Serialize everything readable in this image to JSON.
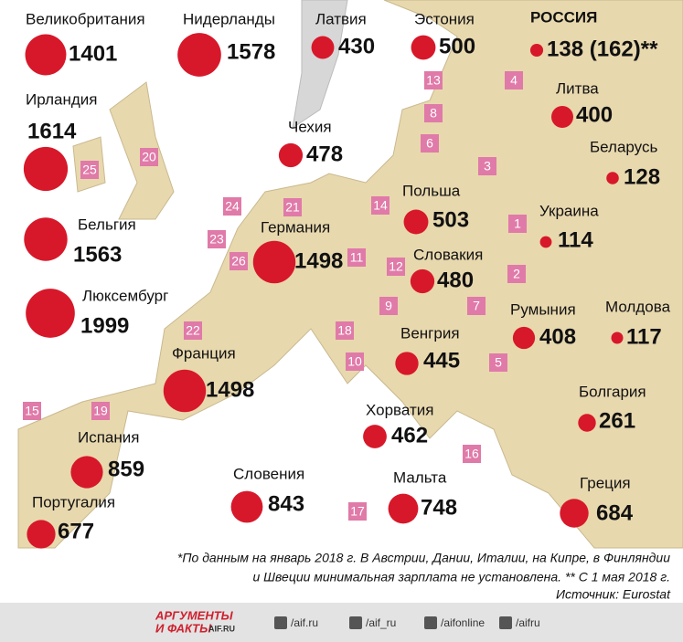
{
  "countries": [
    {
      "name": "Великобритания",
      "value": 1401,
      "rank": "20"
    },
    {
      "name": "Нидерланды",
      "value": 1578,
      "rank": "24"
    },
    {
      "name": "Латвия",
      "value": 430,
      "rank": "8"
    },
    {
      "name": "Эстония",
      "value": 500,
      "rank": "13"
    },
    {
      "name": "РОССИЯ",
      "value": 138,
      "value_label": "138 (162)**",
      "rank": "4"
    },
    {
      "name": "Ирландия",
      "value": 1614,
      "rank": "25"
    },
    {
      "name": "Литва",
      "value": 400,
      "rank": "6"
    },
    {
      "name": "Чехия",
      "value": 478,
      "rank": "11"
    },
    {
      "name": "Беларусь",
      "value": 128,
      "rank": "3"
    },
    {
      "name": "Польша",
      "value": 503,
      "rank": "14"
    },
    {
      "name": "Украина",
      "value": 114,
      "rank": "1"
    },
    {
      "name": "Германия",
      "value": 1498,
      "rank": "21"
    },
    {
      "name": "Бельгия",
      "value": 1563,
      "rank": "23"
    },
    {
      "name": "Словакия",
      "value": 480,
      "rank": "12"
    },
    {
      "name": "Люксембург",
      "value": 1999,
      "rank": "26"
    },
    {
      "name": "Молдова",
      "value": 117,
      "rank": "2"
    },
    {
      "name": "Румыния",
      "value": 408,
      "rank": "7"
    },
    {
      "name": "Венгрия",
      "value": 445,
      "rank": "9"
    },
    {
      "name": "Франция",
      "value": 1498,
      "rank": "22"
    },
    {
      "name": "Болгария",
      "value": 261,
      "rank": "5"
    },
    {
      "name": "Хорватия",
      "value": 462,
      "rank": "10"
    },
    {
      "name": "Испания",
      "value": 859,
      "rank": "19"
    },
    {
      "name": "Греция",
      "value": 684,
      "rank": "16"
    },
    {
      "name": "Словения",
      "value": 843,
      "rank": "18"
    },
    {
      "name": "Мальта",
      "value": 748,
      "rank": "17"
    },
    {
      "name": "Португалия",
      "value": 677,
      "rank": "15"
    }
  ],
  "footnote": [
    "*По данным на январь 2018 г. В Австрии, Дании, Италии, на Кипре, в Финляндии",
    "и Швеции минимальная зарплата не установлена. ** С 1 мая 2018 г."
  ],
  "source": "Источник: Eurostat",
  "footer": {
    "logo_top": "АРГУМЕНТЫ",
    "logo_bottom": "И ФАКТЫ",
    "logo_site": "AIF.RU",
    "social": [
      "/aif.ru",
      "/aif_ru",
      "/aifonline",
      "/aifru"
    ]
  }
}
